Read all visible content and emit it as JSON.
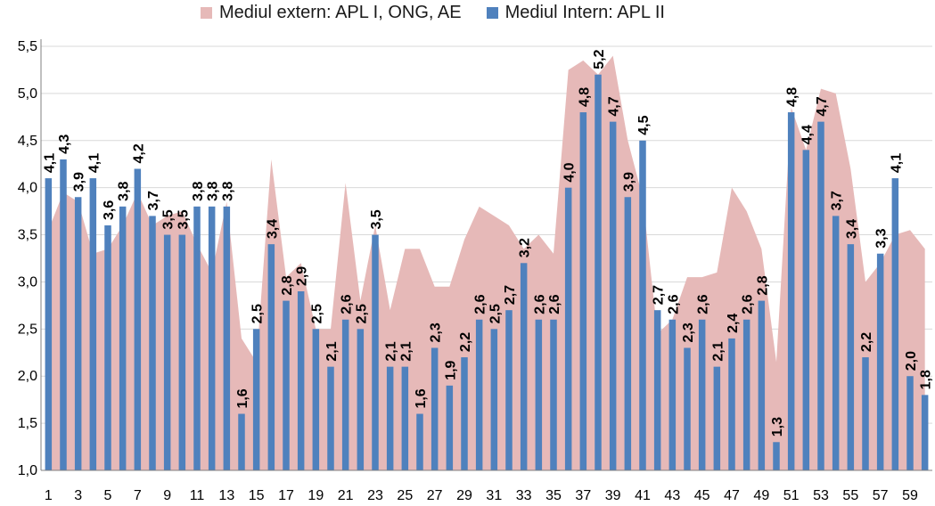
{
  "chart_data": {
    "type": "bar",
    "title": "",
    "xlabel": "",
    "ylabel": "",
    "ylim": [
      1.0,
      5.5
    ],
    "yticks": [
      "1,0",
      "1,5",
      "2,0",
      "2,5",
      "3,0",
      "3,5",
      "4,0",
      "4,5",
      "5,0",
      "5,5"
    ],
    "grid": true,
    "legend_position": "top",
    "categories": [
      1,
      2,
      3,
      4,
      5,
      6,
      7,
      8,
      9,
      10,
      11,
      12,
      13,
      14,
      15,
      16,
      17,
      18,
      19,
      20,
      21,
      22,
      23,
      24,
      25,
      26,
      27,
      28,
      29,
      30,
      31,
      32,
      33,
      34,
      35,
      36,
      37,
      38,
      39,
      40,
      41,
      42,
      43,
      44,
      45,
      46,
      47,
      48,
      49,
      50,
      51,
      52,
      53,
      54,
      55,
      56,
      57,
      58,
      59,
      60
    ],
    "x_tick_labels": [
      "1",
      "3",
      "5",
      "7",
      "9",
      "11",
      "13",
      "15",
      "17",
      "19",
      "21",
      "23",
      "25",
      "27",
      "29",
      "31",
      "33",
      "35",
      "37",
      "39",
      "41",
      "43",
      "45",
      "47",
      "49",
      "51",
      "53",
      "55",
      "57",
      "59"
    ],
    "series": [
      {
        "name": "Mediul extern: APL I, ONG, AE",
        "type": "area",
        "color": "#e6b9b8",
        "values": [
          3.55,
          3.95,
          3.85,
          3.3,
          3.35,
          3.6,
          3.95,
          3.6,
          3.7,
          3.75,
          3.4,
          3.1,
          3.85,
          2.4,
          2.15,
          4.3,
          3.05,
          3.2,
          2.5,
          2.5,
          4.05,
          2.8,
          3.6,
          2.7,
          3.35,
          3.35,
          2.95,
          2.95,
          3.45,
          3.8,
          3.7,
          3.6,
          3.35,
          3.5,
          3.3,
          5.25,
          5.35,
          5.2,
          5.4,
          4.5,
          3.9,
          2.45,
          2.6,
          3.05,
          3.05,
          3.1,
          4.0,
          3.75,
          3.35,
          2.15,
          4.85,
          4.4,
          5.05,
          5.0,
          4.2,
          3.0,
          3.2,
          3.5,
          3.55,
          3.35
        ]
      },
      {
        "name": "Mediul Intern: APL II",
        "type": "bar",
        "color": "#4f81bd",
        "values": [
          4.1,
          4.3,
          3.9,
          4.1,
          3.6,
          3.8,
          4.2,
          3.7,
          3.5,
          3.5,
          3.8,
          3.8,
          3.8,
          1.6,
          2.5,
          3.4,
          2.8,
          2.9,
          2.5,
          2.1,
          2.6,
          2.5,
          3.5,
          2.1,
          2.1,
          1.6,
          2.3,
          1.9,
          2.2,
          2.6,
          2.5,
          2.7,
          3.2,
          2.6,
          2.6,
          4.0,
          4.8,
          5.2,
          4.7,
          3.9,
          4.5,
          2.7,
          2.6,
          2.3,
          2.6,
          2.1,
          2.4,
          2.6,
          2.8,
          1.3,
          4.8,
          4.4,
          4.7,
          3.7,
          3.4,
          2.2,
          3.3,
          4.1,
          2.0,
          1.8
        ],
        "data_labels": [
          "4,1",
          "4,3",
          "3,9",
          "4,1",
          "3,6",
          "3,8",
          "4,2",
          "3,7",
          "3,5",
          "3,5",
          "3,8",
          "3,8",
          "3,8",
          "1,6",
          "2,5",
          "3,4",
          "2,8",
          "2,9",
          "2,5",
          "2,1",
          "2,6",
          "2,5",
          "3,5",
          "2,1",
          "2,1",
          "1,6",
          "2,3",
          "1,9",
          "2,2",
          "2,6",
          "2,5",
          "2,7",
          "3,2",
          "2,6",
          "2,6",
          "4,0",
          "4,8",
          "5,2",
          "4,7",
          "3,9",
          "4,5",
          "2,7",
          "2,6",
          "2,3",
          "2,6",
          "2,1",
          "2,4",
          "2,6",
          "2,8",
          "1,3",
          "4,8",
          "4,4",
          "4,7",
          "3,7",
          "3,4",
          "2,2",
          "3,3",
          "4,1",
          "2,0",
          "1,8"
        ]
      }
    ]
  }
}
